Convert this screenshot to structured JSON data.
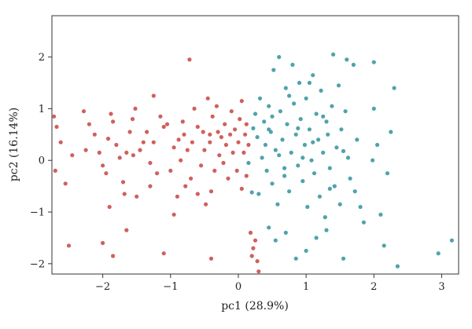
{
  "chart_data": {
    "type": "scatter",
    "title": "",
    "xlabel": "pc1 (28.9%)",
    "ylabel": "pc2 (16.14%)",
    "xlim": [
      -2.75,
      3.25
    ],
    "ylim": [
      -2.2,
      2.8
    ],
    "xticks": [
      -2,
      -1,
      0,
      1,
      2,
      3
    ],
    "yticks": [
      -2,
      -1,
      0,
      1,
      2
    ],
    "grid": false,
    "legend": "none",
    "series": [
      {
        "color": "#d0605c",
        "points": [
          [
            -2.72,
            0.85
          ],
          [
            -2.68,
            0.65
          ],
          [
            -2.62,
            0.35
          ],
          [
            -2.55,
            -0.45
          ],
          [
            -2.5,
            -1.65
          ],
          [
            -2.7,
            -0.2
          ],
          [
            -2.45,
            0.1
          ],
          [
            -2.28,
            0.95
          ],
          [
            -2.2,
            0.7
          ],
          [
            -2.12,
            0.5
          ],
          [
            -2.05,
            0.15
          ],
          [
            -2.0,
            -0.1
          ],
          [
            -1.95,
            -0.25
          ],
          [
            -1.92,
            0.42
          ],
          [
            -1.88,
            0.9
          ],
          [
            -1.85,
            0.75
          ],
          [
            -1.8,
            0.3
          ],
          [
            -1.75,
            0.05
          ],
          [
            -1.7,
            -0.42
          ],
          [
            -1.68,
            -0.65
          ],
          [
            -1.65,
            0.15
          ],
          [
            -1.6,
            0.55
          ],
          [
            -1.56,
            0.8
          ],
          [
            -1.52,
            1.0
          ],
          [
            -1.5,
            -0.7
          ],
          [
            -1.45,
            0.2
          ],
          [
            -1.4,
            0.35
          ],
          [
            -1.35,
            0.55
          ],
          [
            -1.3,
            -0.05
          ],
          [
            -1.3,
            -0.5
          ],
          [
            -1.25,
            0.35
          ],
          [
            -1.2,
            -0.25
          ],
          [
            -1.15,
            0.85
          ],
          [
            -1.1,
            0.65
          ],
          [
            -1.05,
            0.7
          ],
          [
            -1.0,
            -0.2
          ],
          [
            -0.95,
            0.25
          ],
          [
            -0.9,
            -0.7
          ],
          [
            -0.88,
            0.4
          ],
          [
            -0.85,
            0.0
          ],
          [
            -0.82,
            0.75
          ],
          [
            -0.8,
            0.5
          ],
          [
            -0.78,
            -0.5
          ],
          [
            -0.75,
            0.2
          ],
          [
            -0.72,
            1.95
          ],
          [
            -0.7,
            -0.35
          ],
          [
            -0.68,
            0.35
          ],
          [
            -0.65,
            1.0
          ],
          [
            -0.6,
            0.65
          ],
          [
            -0.55,
            -0.1
          ],
          [
            -0.52,
            0.55
          ],
          [
            -0.5,
            0.2
          ],
          [
            -0.48,
            -0.85
          ],
          [
            -0.45,
            1.2
          ],
          [
            -0.42,
            0.35
          ],
          [
            -0.4,
            -0.6
          ],
          [
            -0.38,
            0.85
          ],
          [
            -0.35,
            -0.2
          ],
          [
            -0.32,
            1.05
          ],
          [
            -0.28,
            0.1
          ],
          [
            -0.25,
            0.45
          ],
          [
            -0.22,
            -0.05
          ],
          [
            -0.2,
            0.7
          ],
          [
            -0.18,
            0.3
          ],
          [
            -0.15,
            -0.35
          ],
          [
            -0.12,
            0.5
          ],
          [
            -0.1,
            0.95
          ],
          [
            -0.08,
            0.15
          ],
          [
            -0.05,
            0.6
          ],
          [
            -0.02,
            -0.2
          ],
          [
            0.0,
            0.35
          ],
          [
            0.02,
            0.8
          ],
          [
            0.05,
            -0.55
          ],
          [
            0.08,
            0.15
          ],
          [
            0.1,
            0.5
          ],
          [
            0.12,
            -0.3
          ],
          [
            0.15,
            0.3
          ],
          [
            0.18,
            -1.4
          ],
          [
            0.2,
            -1.85
          ],
          [
            0.22,
            -1.7
          ],
          [
            0.25,
            -1.55
          ],
          [
            0.28,
            -1.95
          ],
          [
            0.3,
            -2.15
          ],
          [
            -0.4,
            -1.9
          ],
          [
            -1.1,
            -1.8
          ],
          [
            -2.0,
            -1.6
          ],
          [
            -1.85,
            -1.85
          ],
          [
            -0.95,
            -1.05
          ],
          [
            -0.6,
            -0.65
          ],
          [
            -1.9,
            -0.9
          ],
          [
            -1.65,
            -1.35
          ],
          [
            -2.25,
            0.2
          ],
          [
            -1.55,
            0.1
          ],
          [
            -0.3,
            0.55
          ],
          [
            0.05,
            1.15
          ],
          [
            0.12,
            0.7
          ],
          [
            -0.42,
            0.5
          ],
          [
            -1.25,
            1.25
          ]
        ]
      },
      {
        "color": "#4fa3ab",
        "points": [
          [
            0.15,
            -0.05
          ],
          [
            0.22,
            0.62
          ],
          [
            0.25,
            0.9
          ],
          [
            0.28,
            0.45
          ],
          [
            0.3,
            -0.65
          ],
          [
            0.32,
            1.2
          ],
          [
            0.35,
            0.05
          ],
          [
            0.38,
            0.75
          ],
          [
            0.4,
            0.3
          ],
          [
            0.42,
            -0.2
          ],
          [
            0.45,
            1.05
          ],
          [
            0.48,
            0.55
          ],
          [
            0.5,
            -0.45
          ],
          [
            0.52,
            1.75
          ],
          [
            0.55,
            0.2
          ],
          [
            0.58,
            -0.85
          ],
          [
            0.6,
            2.0
          ],
          [
            0.62,
            0.95
          ],
          [
            0.65,
            0.4
          ],
          [
            0.68,
            -0.3
          ],
          [
            0.7,
            1.4
          ],
          [
            0.72,
            0.7
          ],
          [
            0.75,
            -0.6
          ],
          [
            0.78,
            0.15
          ],
          [
            0.8,
            1.85
          ],
          [
            0.82,
            1.1
          ],
          [
            0.85,
            0.5
          ],
          [
            0.88,
            -0.1
          ],
          [
            0.9,
            1.5
          ],
          [
            0.92,
            0.8
          ],
          [
            0.95,
            -0.4
          ],
          [
            0.98,
            0.3
          ],
          [
            1.0,
            1.2
          ],
          [
            1.02,
            -0.9
          ],
          [
            1.05,
            0.6
          ],
          [
            1.08,
            0.0
          ],
          [
            1.1,
            1.65
          ],
          [
            1.12,
            -0.25
          ],
          [
            1.15,
            0.9
          ],
          [
            1.18,
            0.4
          ],
          [
            1.2,
            -0.7
          ],
          [
            1.22,
            1.35
          ],
          [
            1.25,
            0.15
          ],
          [
            1.28,
            -1.1
          ],
          [
            1.3,
            0.75
          ],
          [
            1.32,
            0.5
          ],
          [
            1.35,
            -0.15
          ],
          [
            1.38,
            1.05
          ],
          [
            1.4,
            2.05
          ],
          [
            1.42,
            -0.5
          ],
          [
            1.45,
            0.25
          ],
          [
            1.48,
            1.45
          ],
          [
            1.5,
            -0.85
          ],
          [
            1.52,
            0.6
          ],
          [
            1.55,
            -1.9
          ],
          [
            1.58,
            0.95
          ],
          [
            1.6,
            1.95
          ],
          [
            1.62,
            0.05
          ],
          [
            1.65,
            -0.35
          ],
          [
            1.7,
            1.85
          ],
          [
            1.72,
            -0.6
          ],
          [
            1.75,
            0.4
          ],
          [
            1.8,
            -0.9
          ],
          [
            1.85,
            -1.2
          ],
          [
            0.55,
            -1.55
          ],
          [
            0.7,
            -1.4
          ],
          [
            0.85,
            -1.9
          ],
          [
            1.0,
            -1.75
          ],
          [
            1.15,
            -1.5
          ],
          [
            1.3,
            -1.35
          ],
          [
            0.45,
            -1.3
          ],
          [
            2.0,
            1.9
          ],
          [
            2.05,
            0.3
          ],
          [
            2.1,
            -1.05
          ],
          [
            2.15,
            -1.65
          ],
          [
            2.2,
            -0.25
          ],
          [
            2.25,
            0.55
          ],
          [
            2.3,
            1.4
          ],
          [
            2.0,
            1.0
          ],
          [
            1.98,
            0.0
          ],
          [
            2.35,
            -2.05
          ],
          [
            2.95,
            -1.8
          ],
          [
            3.15,
            -1.55
          ],
          [
            0.6,
            0.1
          ],
          [
            0.75,
            1.25
          ],
          [
            1.1,
            0.35
          ],
          [
            1.25,
            0.85
          ],
          [
            0.95,
            0.05
          ],
          [
            0.5,
            0.85
          ],
          [
            1.35,
            -0.55
          ],
          [
            0.68,
            -0.15
          ],
          [
            0.88,
            0.62
          ],
          [
            1.55,
            0.18
          ],
          [
            0.2,
            -0.62
          ],
          [
            0.45,
            0.6
          ],
          [
            1.05,
            1.5
          ]
        ]
      }
    ]
  }
}
